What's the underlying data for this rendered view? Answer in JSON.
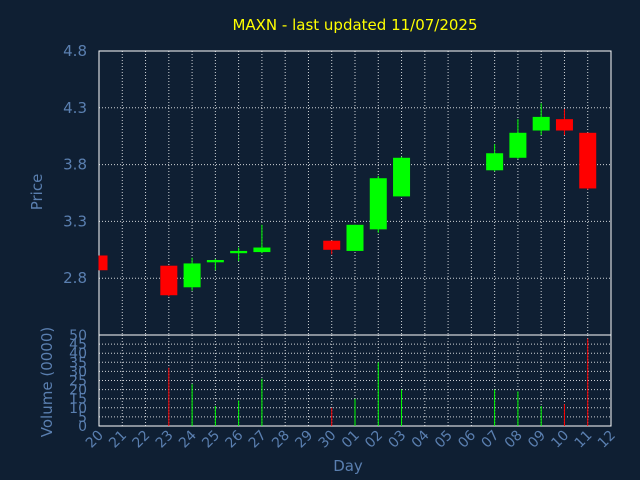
{
  "title": "MAXN - last updated 11/07/2025",
  "colors": {
    "background": "#0f1f33",
    "plot_border": "#ffffff",
    "grid": "#ffffff",
    "text": "#5a7fb0",
    "title": "#ffff00",
    "up": "#00ff00",
    "down": "#ff0000",
    "wick_up": "#00ff00",
    "wick_down": "#ff0000"
  },
  "chart_data": {
    "type": "candlestick",
    "title": "MAXN - last updated 11/07/2025",
    "xlabel": "Day",
    "ylabel": "Price",
    "volume_label": "Volume (0000)",
    "ylim": [
      2.3,
      4.8
    ],
    "price_ticks": [
      "2.8",
      "3.3",
      "3.8",
      "4.3",
      "4.8"
    ],
    "volume_ylim": [
      0,
      50
    ],
    "volume_ticks": [
      "0",
      "5",
      "10",
      "15",
      "20",
      "25",
      "30",
      "35",
      "40",
      "45",
      "50"
    ],
    "x_labels": [
      "20",
      "21",
      "22",
      "23",
      "24",
      "25",
      "26",
      "27",
      "28",
      "29",
      "30",
      "01",
      "02",
      "03",
      "04",
      "05",
      "06",
      "07",
      "08",
      "09",
      "10",
      "11",
      "12"
    ],
    "grid": true,
    "candles": [
      {
        "label": "20",
        "open": 3.0,
        "high": 3.0,
        "low": 2.87,
        "close": 2.87,
        "volume": 0
      },
      {
        "label": "23",
        "open": 2.91,
        "high": 2.91,
        "low": 2.64,
        "close": 2.65,
        "volume": 32
      },
      {
        "label": "24",
        "open": 2.72,
        "high": 2.98,
        "low": 2.69,
        "close": 2.93,
        "volume": 23
      },
      {
        "label": "25",
        "open": 2.94,
        "high": 2.97,
        "low": 2.87,
        "close": 2.96,
        "volume": 11
      },
      {
        "label": "26",
        "open": 3.02,
        "high": 3.07,
        "low": 2.95,
        "close": 3.04,
        "volume": 14
      },
      {
        "label": "27",
        "open": 3.03,
        "high": 3.27,
        "low": 3.02,
        "close": 3.07,
        "volume": 26
      },
      {
        "label": "30",
        "open": 3.13,
        "high": 3.13,
        "low": 3.01,
        "close": 3.05,
        "volume": 10
      },
      {
        "label": "01",
        "open": 3.04,
        "high": 3.27,
        "low": 3.04,
        "close": 3.27,
        "volume": 15
      },
      {
        "label": "02",
        "open": 3.23,
        "high": 3.7,
        "low": 3.2,
        "close": 3.68,
        "volume": 35
      },
      {
        "label": "03",
        "open": 3.52,
        "high": 3.87,
        "low": 3.52,
        "close": 3.86,
        "volume": 20
      },
      {
        "label": "07",
        "open": 3.75,
        "high": 3.98,
        "low": 3.74,
        "close": 3.9,
        "volume": 20
      },
      {
        "label": "08",
        "open": 3.86,
        "high": 4.2,
        "low": 3.85,
        "close": 4.08,
        "volume": 19
      },
      {
        "label": "09",
        "open": 4.1,
        "high": 4.34,
        "low": 4.06,
        "close": 4.22,
        "volume": 11
      },
      {
        "label": "10",
        "open": 4.2,
        "high": 4.29,
        "low": 4.06,
        "close": 4.1,
        "volume": 12
      },
      {
        "label": "11",
        "open": 4.08,
        "high": 4.08,
        "low": 3.58,
        "close": 3.59,
        "volume": 48
      }
    ]
  }
}
